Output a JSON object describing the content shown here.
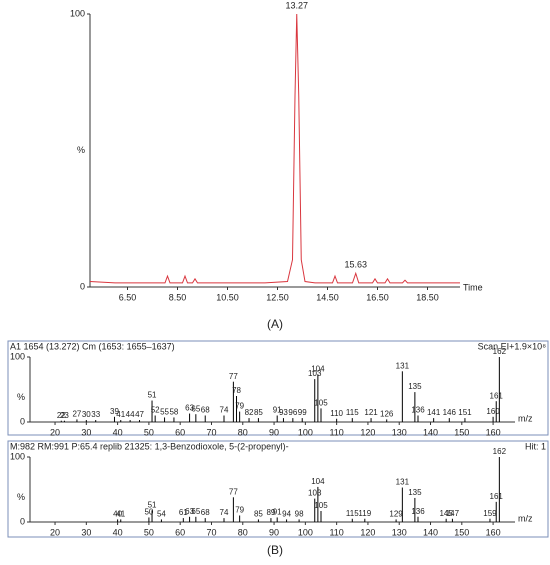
{
  "panel_labels": [
    "(A)",
    "(B)"
  ],
  "chart_data": [
    {
      "type": "line",
      "xlabel": "Time",
      "ylabel": "%",
      "xlim": [
        5.0,
        19.8
      ],
      "ylim": [
        0,
        100
      ],
      "xticks": [
        {
          "value": 6.5,
          "label": "6.50"
        },
        {
          "value": 8.5,
          "label": "8.50"
        },
        {
          "value": 10.5,
          "label": "10.50"
        },
        {
          "value": 12.5,
          "label": "12.50"
        },
        {
          "value": 14.5,
          "label": "14.50"
        },
        {
          "value": 16.5,
          "label": "16.50"
        },
        {
          "value": 18.5,
          "label": "18.50"
        }
      ],
      "yticks": [
        0,
        100
      ],
      "x": [
        5.0,
        6.0,
        7.0,
        8.0,
        8.1,
        8.2,
        8.7,
        8.8,
        8.9,
        9.1,
        9.2,
        9.3,
        10.0,
        11.0,
        12.0,
        12.9,
        13.1,
        13.2,
        13.27,
        13.35,
        13.45,
        13.6,
        14.0,
        14.7,
        14.8,
        14.9,
        15.5,
        15.63,
        15.75,
        16.3,
        16.4,
        16.5,
        16.8,
        16.9,
        17.0,
        17.5,
        17.6,
        17.7,
        18.0,
        19.0,
        19.8
      ],
      "series": [
        {
          "color": "#d9363e",
          "values": [
            2,
            1.5,
            1.5,
            1.5,
            4,
            1.5,
            1.5,
            4,
            1.5,
            1.5,
            3,
            1.5,
            1.5,
            1.5,
            1.5,
            2,
            10,
            70,
            100,
            70,
            10,
            2,
            1.5,
            1.5,
            4,
            1.5,
            1.5,
            5,
            1.5,
            1.5,
            3,
            1.5,
            1.5,
            3,
            1.5,
            1.5,
            2.5,
            1.5,
            1.5,
            1.5,
            1.5
          ]
        }
      ],
      "annotations": [
        {
          "text": "13.27",
          "x": 13.27,
          "y": 100
        },
        {
          "text": "15.63",
          "x": 15.63,
          "y": 5
        }
      ]
    },
    {
      "type": "bar",
      "title": "A1 1654 (13.272) Cm (1653: 1655–1637)",
      "title_right": "Scan EI+1.9×10⁸",
      "xlabel": "m/z",
      "ylabel": "%",
      "color": "#000000",
      "xlim": [
        12,
        167
      ],
      "ylim": [
        0,
        100
      ],
      "xticks": [
        20,
        30,
        40,
        50,
        60,
        70,
        80,
        90,
        100,
        110,
        120,
        130,
        140,
        150,
        160
      ],
      "yticks": [
        0,
        100
      ],
      "x": [
        22,
        23,
        27,
        30,
        33,
        39,
        41,
        44,
        47,
        51,
        52,
        55,
        58,
        63,
        65,
        68,
        74,
        77,
        78,
        79,
        82,
        85,
        91,
        93,
        96,
        99,
        103,
        104,
        105,
        110,
        115,
        121,
        126,
        131,
        135,
        136,
        141,
        146,
        151,
        160,
        161,
        162
      ],
      "values": [
        2,
        2,
        4,
        3,
        3,
        8,
        3,
        3,
        3,
        33,
        10,
        7,
        7,
        13,
        12,
        10,
        10,
        62,
        40,
        16,
        6,
        6,
        10,
        6,
        6,
        6,
        66,
        73,
        21,
        5,
        6,
        6,
        4,
        78,
        46,
        10,
        6,
        6,
        6,
        8,
        32,
        100
      ]
    },
    {
      "type": "bar",
      "title": "M:982 RM:991 P:65.4 replib 21325: 1,3-Benzodioxole, 5-(2-propenyl)-",
      "title_right": "Hit: 1",
      "xlabel": "m/z",
      "ylabel": "%",
      "color": "#000000",
      "xlim": [
        12,
        167
      ],
      "ylim": [
        0,
        100
      ],
      "xticks": [
        20,
        30,
        40,
        50,
        60,
        70,
        80,
        90,
        100,
        110,
        120,
        130,
        140,
        150,
        160
      ],
      "yticks": [
        0,
        100
      ],
      "x": [
        40,
        41,
        50,
        51,
        54,
        61,
        63,
        65,
        68,
        74,
        77,
        79,
        85,
        89,
        91,
        94,
        98,
        103,
        104,
        105,
        115,
        119,
        129,
        131,
        135,
        136,
        145,
        147,
        159,
        161,
        162
      ],
      "values": [
        4,
        4,
        7,
        18,
        4,
        6,
        8,
        8,
        6,
        6,
        38,
        10,
        4,
        6,
        7,
        4,
        4,
        36,
        54,
        17,
        5,
        5,
        4,
        53,
        37,
        8,
        5,
        5,
        5,
        31,
        100
      ]
    }
  ]
}
